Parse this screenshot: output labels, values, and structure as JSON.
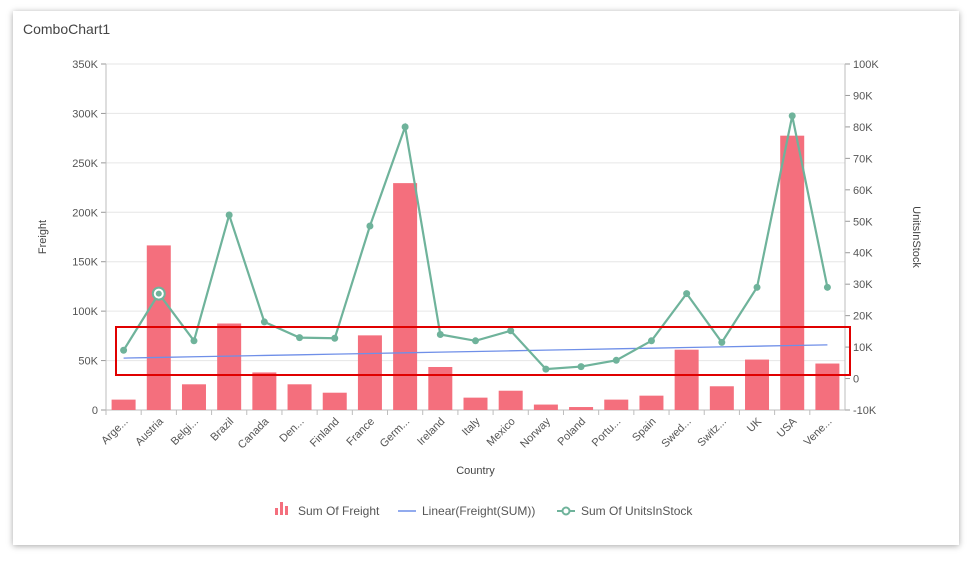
{
  "widget": {
    "title": "ComboChart1"
  },
  "chart_data": {
    "type": "bar",
    "xlabel": "Country",
    "ylabel": "Freight",
    "y2label": "UnitsInStock",
    "categories": [
      "Arge...",
      "Austria",
      "Belgi...",
      "Brazil",
      "Canada",
      "Den...",
      "Finland",
      "France",
      "Germ...",
      "Ireland",
      "Italy",
      "Mexico",
      "Norway",
      "Poland",
      "Portu...",
      "Spain",
      "Swed...",
      "Switz...",
      "UK",
      "USA",
      "Vene..."
    ],
    "ylim": [
      0,
      350000
    ],
    "y2lim": [
      -10000,
      100000
    ],
    "yticks": [
      "0",
      "50K",
      "100K",
      "150K",
      "200K",
      "250K",
      "300K",
      "350K"
    ],
    "y2ticks": [
      "-10K",
      "0",
      "10K",
      "20K",
      "30K",
      "40K",
      "50K",
      "60K",
      "70K",
      "80K",
      "90K",
      "100K"
    ],
    "series": [
      {
        "name": "Sum Of Freight",
        "kind": "bar",
        "color": "#f46f7d",
        "values": [
          10500,
          166500,
          26000,
          87500,
          38000,
          26000,
          17500,
          75500,
          229500,
          43500,
          12500,
          19500,
          5500,
          3000,
          10500,
          14500,
          61000,
          24000,
          51000,
          277500,
          47000
        ]
      },
      {
        "name": "Linear(Freight(SUM))",
        "kind": "trendline",
        "color": "#6f8fe8",
        "values": [
          52500,
          53170,
          53840,
          54510,
          55180,
          55850,
          56520,
          57190,
          57860,
          58530,
          59200,
          59870,
          60540,
          61210,
          61880,
          62550,
          63220,
          63890,
          64560,
          65230,
          65900
        ]
      },
      {
        "name": "Sum Of UnitsInStock",
        "kind": "line",
        "axis": "secondary",
        "color": "#6fb39b",
        "values": [
          9000,
          27000,
          12000,
          52000,
          18000,
          13000,
          12800,
          48500,
          80000,
          14000,
          12000,
          15200,
          3000,
          3800,
          5800,
          12000,
          27000,
          11500,
          29000,
          83500,
          29000
        ]
      }
    ],
    "legend_position": "bottom",
    "highlighted_point": {
      "series": "Sum Of UnitsInStock",
      "category": "Austria"
    },
    "selection_box_color": "#e00000"
  }
}
